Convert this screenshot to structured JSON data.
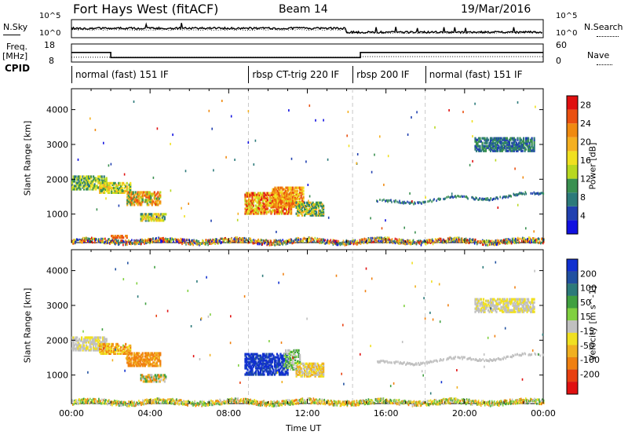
{
  "header": {
    "title": "Fort Hays West (fitACF)",
    "beam": "Beam 14",
    "date": "19/Mar/2016"
  },
  "noise_panel": {
    "left_label": "N.Sky",
    "right_label": "N.Search",
    "left_ticks": [
      "10^5",
      "10^0"
    ],
    "right_ticks": [
      "10^5",
      "10^0"
    ]
  },
  "freq_panel": {
    "left_label_1": "Freq.",
    "left_label_2": "[MHz]",
    "right_label": "Nave",
    "left_ticks": [
      "18",
      "8"
    ],
    "right_ticks": [
      "60",
      "0"
    ],
    "freq_series": [
      {
        "t": 0,
        "v": 13.3
      },
      {
        "t": 2.0,
        "v": 13.3
      },
      {
        "t": 2.0,
        "v": 10.5
      },
      {
        "t": 14.7,
        "v": 10.5
      },
      {
        "t": 14.7,
        "v": 13.3
      },
      {
        "t": 24,
        "v": 13.3
      }
    ],
    "nave_series": [
      {
        "t": 0,
        "v": 16
      },
      {
        "t": 14.7,
        "v": 16
      },
      {
        "t": 14.7,
        "v": 18
      },
      {
        "t": 24,
        "v": 18
      }
    ]
  },
  "cpid": {
    "label": "CPID",
    "segments": [
      {
        "start": 0,
        "end": 9.0,
        "text": "normal (fast) 151 IF"
      },
      {
        "start": 9.0,
        "end": 14.3,
        "text": "rbsp CT-trig 220 IF"
      },
      {
        "start": 14.3,
        "end": 18.0,
        "text": "rbsp 200 IF"
      },
      {
        "start": 18.0,
        "end": 24,
        "text": "normal (fast) 151 IF"
      }
    ]
  },
  "chart_data": [
    {
      "type": "heatmap",
      "name": "power",
      "ylabel": "Slant Range [km]",
      "yticks": [
        1000,
        2000,
        3000,
        4000
      ],
      "ylim": [
        180,
        4600
      ],
      "xlim": [
        0,
        24
      ],
      "colorbar": {
        "label": "Power [dB]",
        "ticks": [
          "4",
          "8",
          "12",
          "16",
          "20",
          "24",
          "28"
        ],
        "colors": [
          "#1010e0",
          "#2040b0",
          "#2c7a7a",
          "#3a9050",
          "#b8d820",
          "#f0e020",
          "#f5b020",
          "#f08a10",
          "#ea5010",
          "#e01010"
        ]
      },
      "regions": [
        {
          "t0": 0.0,
          "t1": 1.8,
          "r0": 1750,
          "r1": 2150,
          "c": [
            2,
            3,
            4,
            5
          ]
        },
        {
          "t0": 1.4,
          "t1": 3.0,
          "r0": 1650,
          "r1": 1950,
          "c": [
            3,
            4,
            5,
            6
          ]
        },
        {
          "t0": 2.8,
          "t1": 4.5,
          "r0": 1300,
          "r1": 1700,
          "c": [
            3,
            4,
            6,
            7,
            8
          ]
        },
        {
          "t0": 3.5,
          "t1": 4.8,
          "r0": 850,
          "r1": 1050,
          "c": [
            2,
            4,
            5,
            6
          ]
        },
        {
          "t0": 2.0,
          "t1": 2.8,
          "r0": 360,
          "r1": 450,
          "c": [
            7,
            8
          ]
        },
        {
          "t0": 8.8,
          "t1": 11.2,
          "r0": 1050,
          "r1": 1650,
          "c": [
            4,
            5,
            6,
            7,
            8,
            9
          ]
        },
        {
          "t0": 10.2,
          "t1": 11.8,
          "r0": 1250,
          "r1": 1800,
          "c": [
            5,
            6,
            7,
            8
          ]
        },
        {
          "t0": 11.4,
          "t1": 12.8,
          "r0": 1000,
          "r1": 1400,
          "c": [
            2,
            3,
            4,
            6
          ]
        },
        {
          "t0": 20.5,
          "t1": 23.5,
          "r0": 2850,
          "r1": 3250,
          "c": [
            1,
            2,
            3
          ]
        }
      ],
      "bands": [
        {
          "t0": 15.5,
          "t1": 24.0,
          "r_start": 1350,
          "r_end": 1600,
          "wiggle": 60,
          "c": [
            1,
            2,
            3
          ]
        },
        {
          "t0": 0.0,
          "t1": 24.0,
          "r_start": 250,
          "r_end": 250,
          "wiggle": 40,
          "c": [
            0,
            1,
            2,
            3,
            4,
            5,
            6,
            7,
            8,
            9
          ]
        }
      ]
    },
    {
      "type": "heatmap",
      "name": "velocity",
      "ylabel": "Slant Range [km]",
      "yticks": [
        1000,
        2000,
        3000,
        4000
      ],
      "ylim": [
        180,
        4600
      ],
      "xlim": [
        0,
        24
      ],
      "xticks": [
        "00:00",
        "04:00",
        "08:00",
        "12:00",
        "16:00",
        "20:00",
        "00:00"
      ],
      "xlabel": "Time UT",
      "colorbar": {
        "label": "Velocity [m s^-1]",
        "ticks": [
          "200",
          "100",
          "50",
          "15",
          "-15",
          "-50",
          "-100",
          "-200"
        ],
        "colors": [
          "#1030d0",
          "#2050a0",
          "#2c7a7a",
          "#40a040",
          "#80d040",
          "#c0c0c0",
          "#f0e020",
          "#f0b020",
          "#f08010",
          "#e84010",
          "#e01010"
        ]
      },
      "regions": [
        {
          "t0": 0.0,
          "t1": 1.8,
          "r0": 1750,
          "r1": 2150,
          "c": [
            5,
            5,
            6
          ]
        },
        {
          "t0": 1.4,
          "t1": 3.0,
          "r0": 1650,
          "r1": 1950,
          "c": [
            6,
            7,
            8
          ]
        },
        {
          "t0": 2.8,
          "t1": 4.5,
          "r0": 1300,
          "r1": 1700,
          "c": [
            7,
            8,
            8
          ]
        },
        {
          "t0": 3.5,
          "t1": 4.8,
          "r0": 850,
          "r1": 1050,
          "c": [
            7,
            8,
            5,
            3
          ]
        },
        {
          "t0": 8.8,
          "t1": 11.0,
          "r0": 1050,
          "r1": 1650,
          "c": [
            0,
            0,
            1,
            0
          ]
        },
        {
          "t0": 10.8,
          "t1": 11.6,
          "r0": 1200,
          "r1": 1750,
          "c": [
            3,
            4,
            5
          ]
        },
        {
          "t0": 11.4,
          "t1": 12.8,
          "r0": 1000,
          "r1": 1400,
          "c": [
            6,
            7,
            5
          ]
        },
        {
          "t0": 20.5,
          "t1": 23.5,
          "r0": 2850,
          "r1": 3250,
          "c": [
            5,
            5,
            6
          ]
        }
      ],
      "bands": [
        {
          "t0": 15.5,
          "t1": 24.0,
          "r_start": 1350,
          "r_end": 1600,
          "wiggle": 60,
          "c": [
            5,
            5
          ]
        },
        {
          "t0": 0.0,
          "t1": 24.0,
          "r_start": 250,
          "r_end": 250,
          "wiggle": 40,
          "c": [
            3,
            4,
            5,
            6,
            7,
            8
          ]
        }
      ]
    }
  ]
}
